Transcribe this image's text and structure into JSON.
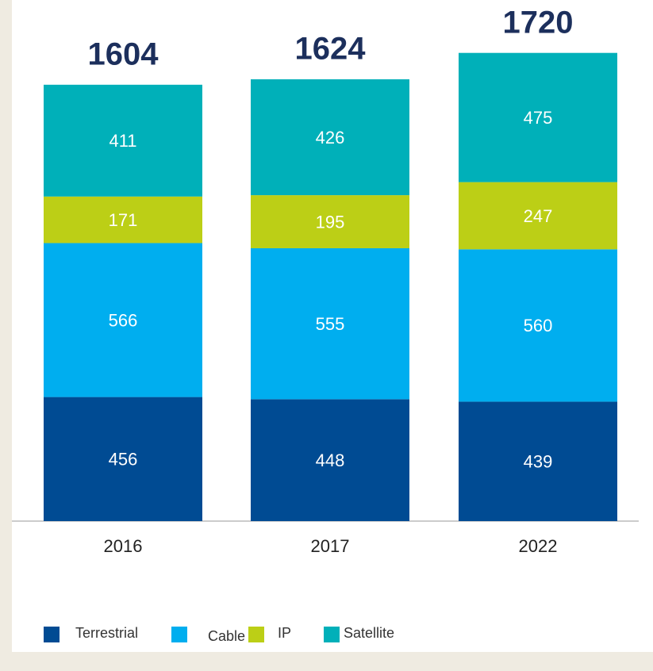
{
  "chart_data": {
    "type": "bar",
    "stacked": true,
    "categories": [
      "2016",
      "2017",
      "2022"
    ],
    "series": [
      {
        "name": "Terrestrial",
        "color": "#004b93",
        "values": [
          456,
          448,
          439
        ]
      },
      {
        "name": "Cable",
        "color": "#00aeef",
        "values": [
          566,
          555,
          560
        ]
      },
      {
        "name": "IP",
        "color": "#bccf16",
        "values": [
          171,
          195,
          247
        ]
      },
      {
        "name": "Satellite",
        "color": "#00b0b9",
        "values": [
          411,
          426,
          475
        ]
      }
    ],
    "totals": [
      1604,
      1624,
      1720
    ],
    "legend": "bottom-left"
  }
}
